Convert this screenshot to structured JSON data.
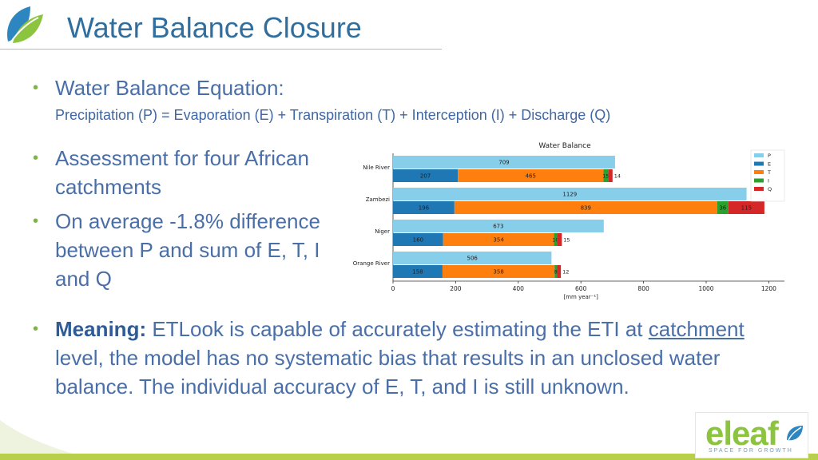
{
  "slide": {
    "title": "Water Balance Closure",
    "bullet1": "Water Balance Equation:",
    "equation": "Precipitation (P) = Evaporation (E) + Transpiration (T) + Interception (I) + Discharge (Q)",
    "bullet2_line1": "Assessment for four African",
    "bullet2_line2": "catchments",
    "bullet3_line1": "On average -1.8% difference",
    "bullet3_line2": "between P and sum of E, T, I",
    "bullet3_line3": "and Q",
    "meaning_label": "Meaning:",
    "meaning_part1": " ETLook is capable of accurately estimating the ETI at ",
    "meaning_link": "catchment",
    "meaning_line2": "level, the model has no systematic bias that results in an unclosed water",
    "meaning_line3": "balance. The individual accuracy of E, T, and I is still unknown.",
    "logo_word": "eleaf",
    "logo_tagline": "SPACE FOR GROWTH"
  },
  "chart_data": {
    "type": "bar",
    "orientation": "horizontal",
    "title": "Water Balance",
    "xlabel": "[mm year⁻¹]",
    "xlim": [
      0,
      1250
    ],
    "xticks": [
      0,
      200,
      400,
      600,
      800,
      1000,
      1200
    ],
    "categories": [
      "Nile River",
      "Zambezi",
      "Niger",
      "Orange River"
    ],
    "precipitation": {
      "name": "P",
      "values": [
        709,
        1129,
        673,
        506
      ]
    },
    "stacked_series": [
      {
        "name": "E",
        "values": [
          207,
          196,
          160,
          158
        ]
      },
      {
        "name": "T",
        "values": [
          465,
          839,
          354,
          358
        ]
      },
      {
        "name": "I",
        "values": [
          15,
          36,
          10,
          8
        ]
      },
      {
        "name": "Q",
        "values": [
          14,
          115,
          15,
          12
        ]
      }
    ],
    "legend": [
      "P",
      "E",
      "T",
      "I",
      "Q"
    ],
    "legend_position": "top-right",
    "colors": {
      "P": "#87ceeb",
      "E": "#1f77b4",
      "T": "#ff7f0e",
      "I": "#2ca02c",
      "Q": "#d62728"
    }
  }
}
